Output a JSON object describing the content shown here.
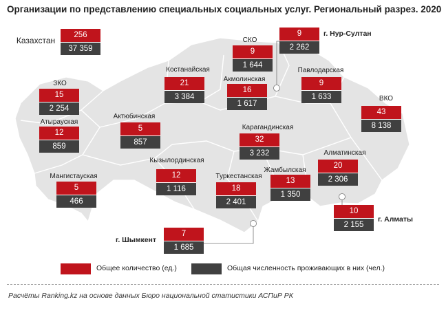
{
  "title": "Организации  по представлению специальных социальных услуг. Региональный разрез. 2020",
  "colors": {
    "count": "#c0141c",
    "population": "#404040",
    "map_fill": "#e4e4e4",
    "map_border": "#ffffff"
  },
  "national": {
    "name": "Казахстан",
    "count": "256",
    "population": "37 359"
  },
  "regions": [
    {
      "name": "СКО",
      "count": "9",
      "population": "1 644"
    },
    {
      "name": "г. Нур-Султан",
      "count": "9",
      "population": "2 262"
    },
    {
      "name": "Костанайская",
      "count": "21",
      "population": "3 384"
    },
    {
      "name": "Акмолинская",
      "count": "16",
      "population": "1 617"
    },
    {
      "name": "Павлодарская",
      "count": "9",
      "population": "1 633"
    },
    {
      "name": "ЗКО",
      "count": "15",
      "population": "2 254"
    },
    {
      "name": "ВКО",
      "count": "43",
      "population": "8 138"
    },
    {
      "name": "Атырауская",
      "count": "12",
      "population": "859"
    },
    {
      "name": "Актюбинская",
      "count": "5",
      "population": "857"
    },
    {
      "name": "Карагандинская",
      "count": "32",
      "population": "3 232"
    },
    {
      "name": "Кызылординская",
      "count": "12",
      "population": "1 116"
    },
    {
      "name": "Алматинская",
      "count": "20",
      "population": "2 306"
    },
    {
      "name": "Мангистауская",
      "count": "5",
      "population": "466"
    },
    {
      "name": "Жамбылская",
      "count": "13",
      "population": "1 350"
    },
    {
      "name": "Туркестанская",
      "count": "18",
      "population": "2 401"
    },
    {
      "name": "г. Алматы",
      "count": "10",
      "population": "2 155"
    },
    {
      "name": "г. Шымкент",
      "count": "7",
      "population": "1 685"
    }
  ],
  "legend": {
    "count_label": "Общее количество (ед.)",
    "population_label": "Общая численность проживающих в них (чел.)"
  },
  "source": "Расчёты Ranking.kz на основе данных  Бюро национальной  статистики АСПиР РК"
}
